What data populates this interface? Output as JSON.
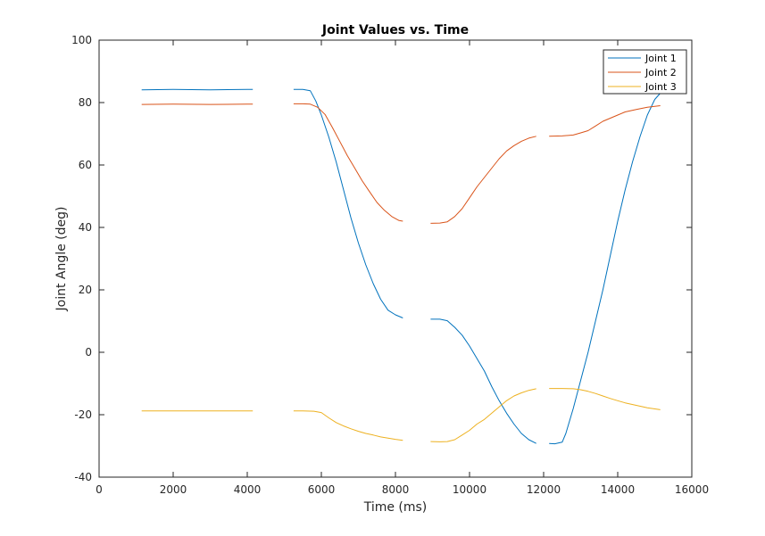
{
  "chart_data": {
    "type": "line",
    "title": "Joint Values vs. Time",
    "xlabel": "Time (ms)",
    "ylabel": "Joint Angle (deg)",
    "xlim": [
      0,
      16000
    ],
    "ylim": [
      -40,
      100
    ],
    "xticks": [
      0,
      2000,
      4000,
      6000,
      8000,
      10000,
      12000,
      14000,
      16000
    ],
    "xtick_labels": [
      "0",
      "2000",
      "4000",
      "6000",
      "8000",
      "10000",
      "12000",
      "14000",
      "16000"
    ],
    "yticks": [
      -40,
      -20,
      0,
      20,
      40,
      60,
      80,
      100
    ],
    "ytick_labels": [
      "-40",
      "-20",
      "0",
      "20",
      "40",
      "60",
      "80",
      "100"
    ],
    "grid": false,
    "legend_position": "top-right",
    "series": [
      {
        "name": "Joint 1",
        "color": "#0072BD",
        "segments": [
          [
            [
              1150,
              84.1
            ],
            [
              2000,
              84.2
            ],
            [
              3000,
              84.1
            ],
            [
              4000,
              84.2
            ],
            [
              4150,
              84.2
            ]
          ],
          [
            [
              5250,
              84.2
            ],
            [
              5500,
              84.2
            ],
            [
              5700,
              83.8
            ],
            [
              5850,
              80.5
            ],
            [
              6000,
              76
            ],
            [
              6200,
              69
            ],
            [
              6400,
              61
            ],
            [
              6600,
              52
            ],
            [
              6800,
              43
            ],
            [
              7000,
              35
            ],
            [
              7200,
              28
            ],
            [
              7400,
              22
            ],
            [
              7600,
              17
            ],
            [
              7800,
              13.5
            ],
            [
              8000,
              12
            ],
            [
              8200,
              11
            ]
          ],
          [
            [
              8950,
              10.6
            ],
            [
              9200,
              10.6
            ],
            [
              9400,
              10.1
            ],
            [
              9600,
              8
            ],
            [
              9800,
              5.5
            ],
            [
              10000,
              2
            ],
            [
              10200,
              -2
            ],
            [
              10400,
              -6
            ],
            [
              10600,
              -11
            ],
            [
              10800,
              -15.5
            ],
            [
              11000,
              -19.5
            ],
            [
              11200,
              -23
            ],
            [
              11400,
              -26
            ],
            [
              11600,
              -28
            ],
            [
              11800,
              -29.2
            ]
          ],
          [
            [
              12150,
              -29.2
            ],
            [
              12300,
              -29.3
            ],
            [
              12500,
              -28.8
            ],
            [
              12600,
              -26
            ],
            [
              12800,
              -18
            ],
            [
              13000,
              -9
            ],
            [
              13200,
              0
            ],
            [
              13400,
              10
            ],
            [
              13600,
              20
            ],
            [
              13800,
              31
            ],
            [
              14000,
              42
            ],
            [
              14200,
              52
            ],
            [
              14400,
              61
            ],
            [
              14600,
              69
            ],
            [
              14800,
              76
            ],
            [
              15000,
              81
            ],
            [
              15150,
              83
            ]
          ]
        ]
      },
      {
        "name": "Joint 2",
        "color": "#D95319",
        "segments": [
          [
            [
              1150,
              79.4
            ],
            [
              2000,
              79.5
            ],
            [
              3000,
              79.4
            ],
            [
              4000,
              79.5
            ],
            [
              4150,
              79.5
            ]
          ],
          [
            [
              5250,
              79.6
            ],
            [
              5500,
              79.6
            ],
            [
              5700,
              79.5
            ],
            [
              5900,
              78.5
            ],
            [
              6100,
              76.2
            ],
            [
              6300,
              72
            ],
            [
              6500,
              67.5
            ],
            [
              6700,
              63
            ],
            [
              6900,
              59
            ],
            [
              7100,
              55
            ],
            [
              7300,
              51.5
            ],
            [
              7500,
              48
            ],
            [
              7700,
              45.5
            ],
            [
              7900,
              43.5
            ],
            [
              8100,
              42.2
            ],
            [
              8200,
              42
            ]
          ],
          [
            [
              8950,
              41.3
            ],
            [
              9200,
              41.4
            ],
            [
              9400,
              41.8
            ],
            [
              9600,
              43.5
            ],
            [
              9800,
              46
            ],
            [
              10000,
              49.5
            ],
            [
              10200,
              53
            ],
            [
              10400,
              56
            ],
            [
              10600,
              59
            ],
            [
              10800,
              62
            ],
            [
              11000,
              64.5
            ],
            [
              11200,
              66.2
            ],
            [
              11400,
              67.6
            ],
            [
              11600,
              68.6
            ],
            [
              11800,
              69.2
            ]
          ],
          [
            [
              12150,
              69.2
            ],
            [
              12500,
              69.3
            ],
            [
              12800,
              69.6
            ],
            [
              13000,
              70.3
            ],
            [
              13200,
              71
            ],
            [
              13400,
              72.5
            ],
            [
              13600,
              74
            ],
            [
              13800,
              75
            ],
            [
              14000,
              76
            ],
            [
              14200,
              77
            ],
            [
              14500,
              77.8
            ],
            [
              14800,
              78.5
            ],
            [
              15150,
              79
            ]
          ]
        ]
      },
      {
        "name": "Joint 3",
        "color": "#EDB120",
        "segments": [
          [
            [
              1150,
              -18.8
            ],
            [
              2000,
              -18.8
            ],
            [
              3000,
              -18.8
            ],
            [
              4000,
              -18.8
            ],
            [
              4150,
              -18.8
            ]
          ],
          [
            [
              5250,
              -18.8
            ],
            [
              5500,
              -18.8
            ],
            [
              5800,
              -18.9
            ],
            [
              6000,
              -19.3
            ],
            [
              6200,
              -21
            ],
            [
              6400,
              -22.5
            ],
            [
              6600,
              -23.6
            ],
            [
              6800,
              -24.5
            ],
            [
              7000,
              -25.3
            ],
            [
              7200,
              -26
            ],
            [
              7400,
              -26.5
            ],
            [
              7600,
              -27.1
            ],
            [
              7800,
              -27.5
            ],
            [
              8000,
              -27.9
            ],
            [
              8200,
              -28.2
            ]
          ],
          [
            [
              8950,
              -28.6
            ],
            [
              9200,
              -28.7
            ],
            [
              9400,
              -28.6
            ],
            [
              9600,
              -28
            ],
            [
              9800,
              -26.5
            ],
            [
              10000,
              -25
            ],
            [
              10200,
              -23
            ],
            [
              10400,
              -21.5
            ],
            [
              10600,
              -19.5
            ],
            [
              10800,
              -17.5
            ],
            [
              11000,
              -15.5
            ],
            [
              11200,
              -14
            ],
            [
              11400,
              -13
            ],
            [
              11600,
              -12.2
            ],
            [
              11800,
              -11.7
            ]
          ],
          [
            [
              12150,
              -11.6
            ],
            [
              12500,
              -11.6
            ],
            [
              12800,
              -11.7
            ],
            [
              13000,
              -12
            ],
            [
              13200,
              -12.5
            ],
            [
              13400,
              -13.2
            ],
            [
              13600,
              -14
            ],
            [
              13800,
              -14.8
            ],
            [
              14000,
              -15.5
            ],
            [
              14200,
              -16.2
            ],
            [
              14500,
              -17
            ],
            [
              14800,
              -17.8
            ],
            [
              15150,
              -18.4
            ]
          ]
        ]
      }
    ]
  }
}
